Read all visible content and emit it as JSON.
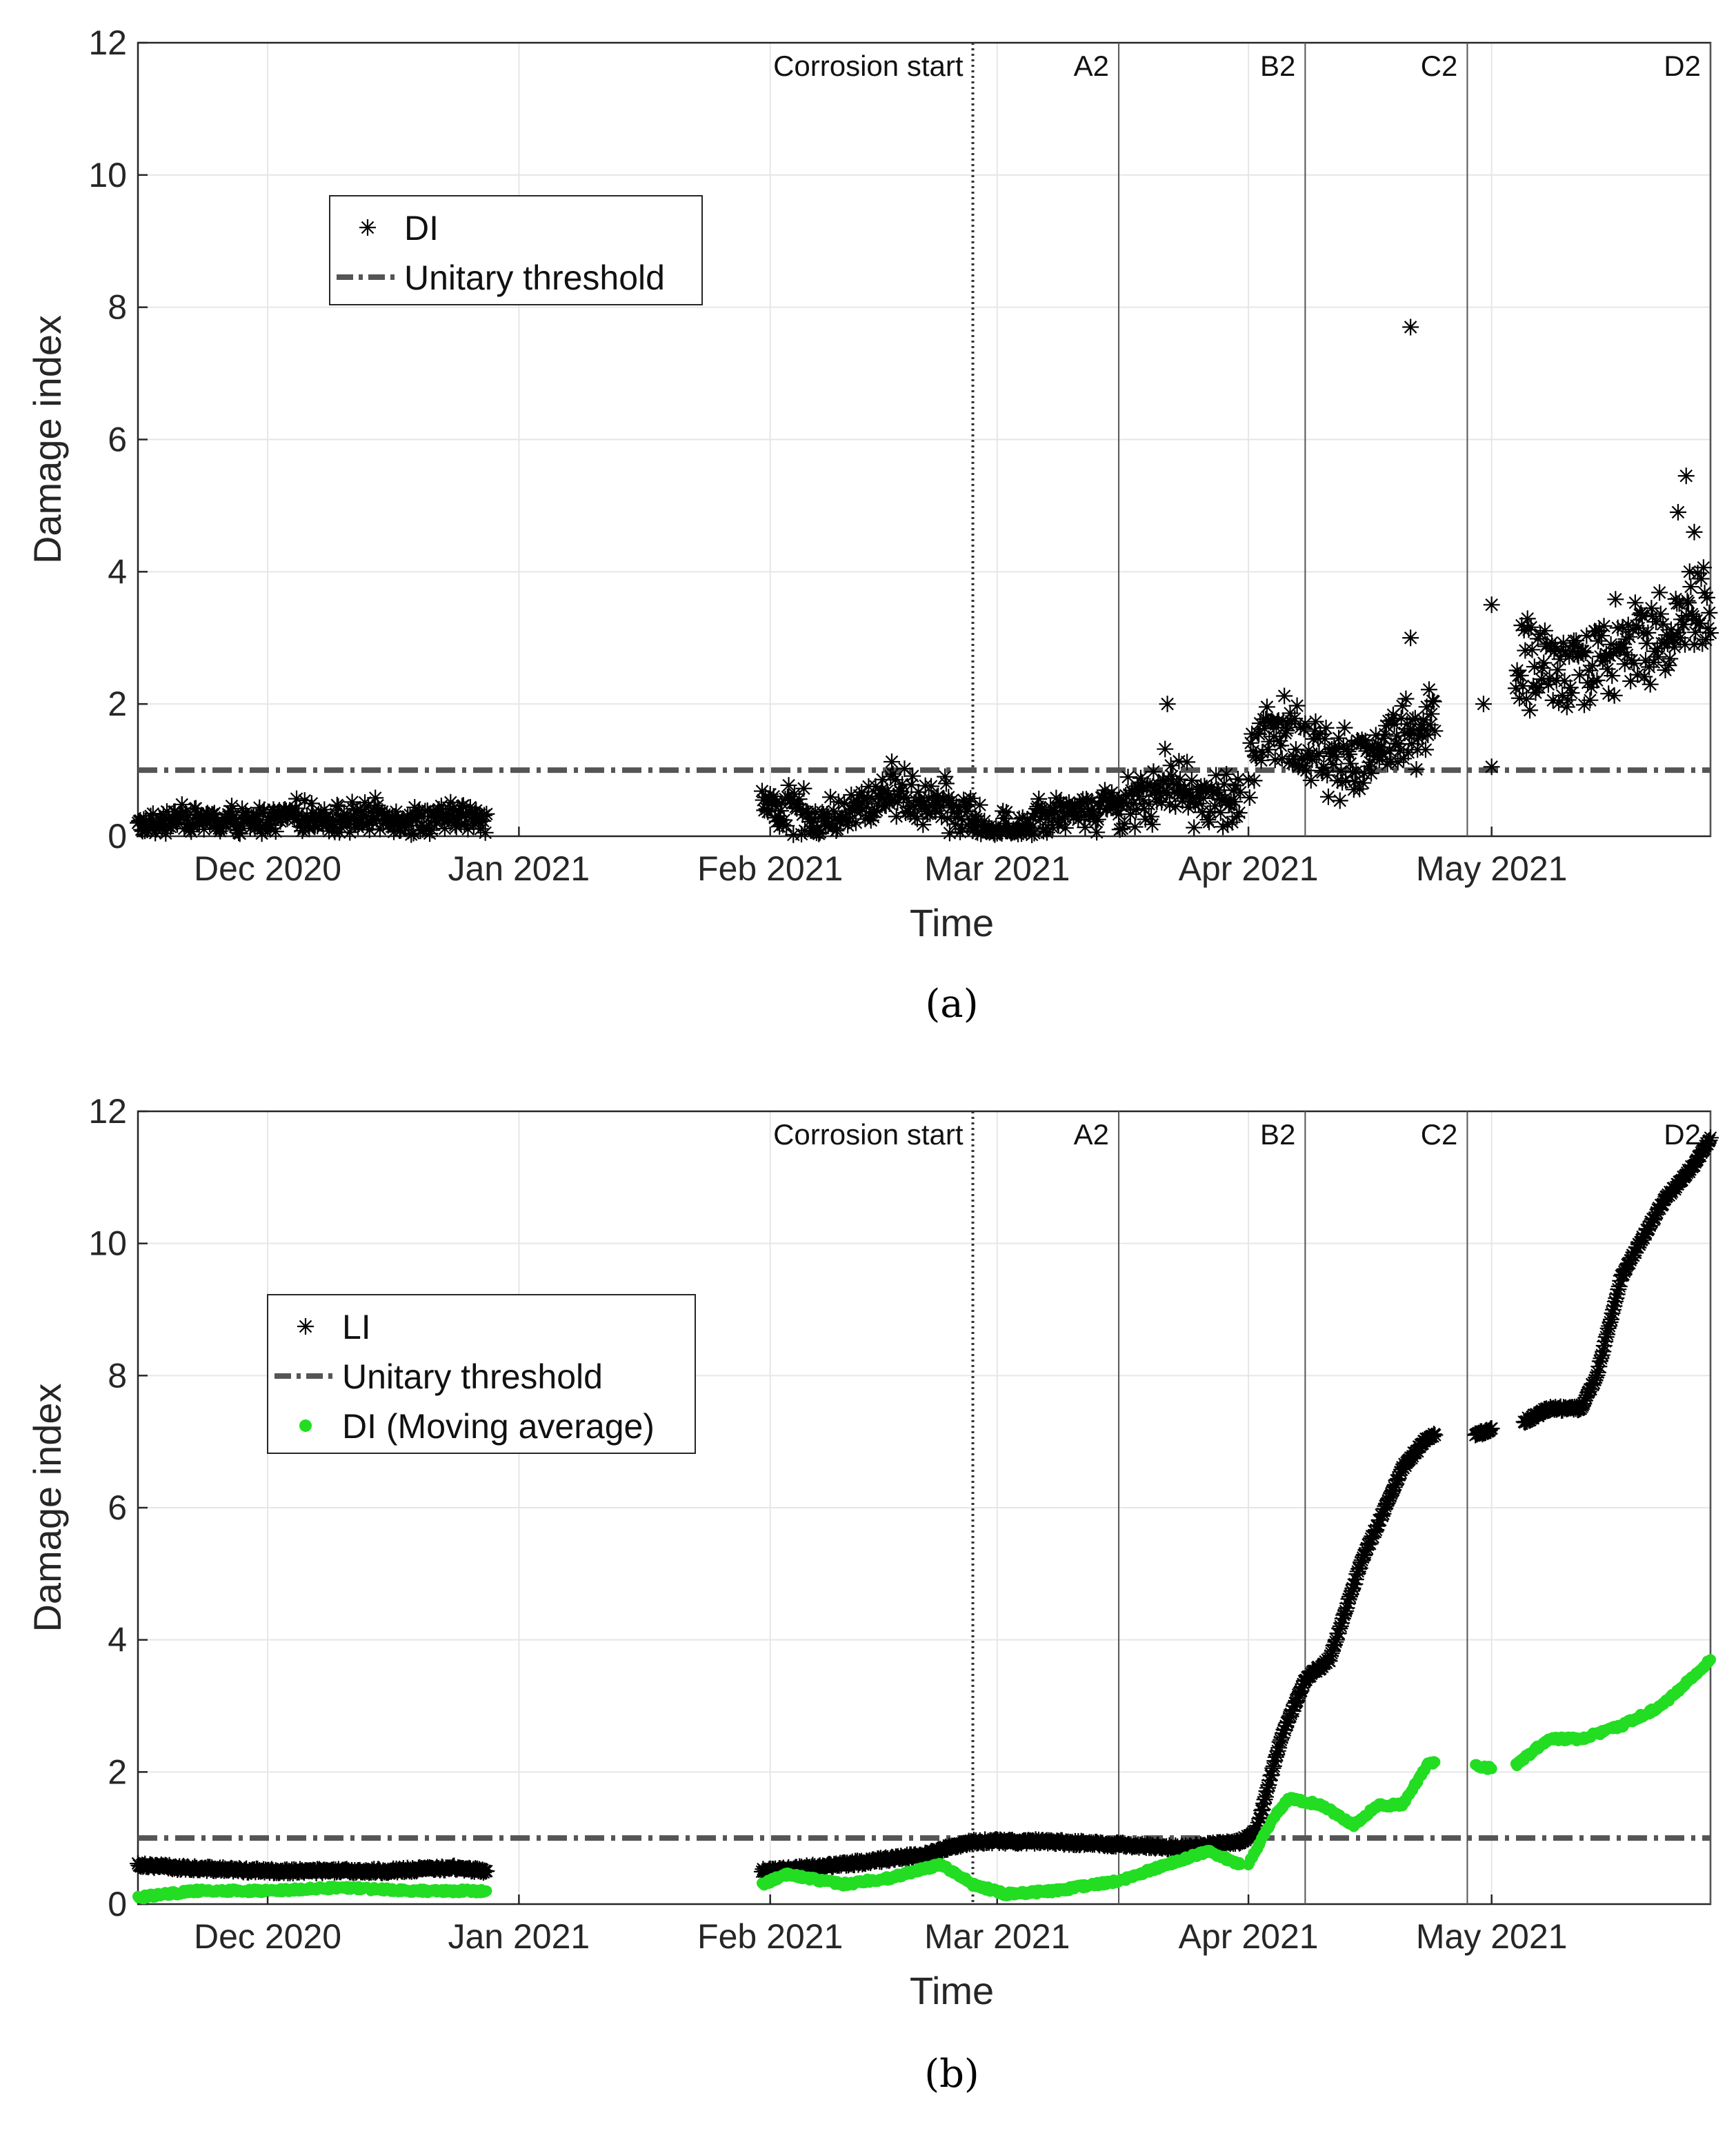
{
  "chart_data": [
    {
      "panel_label": "(a)",
      "type": "scatter",
      "xlabel": "Time",
      "ylabel": "Damage index",
      "ylim": [
        0,
        12
      ],
      "yticks": [
        0,
        2,
        4,
        6,
        8,
        10,
        12
      ],
      "xlim": [
        "2020-11-15",
        "2021-05-28"
      ],
      "xticks": [
        {
          "date": "2020-12-01",
          "label": "Dec 2020"
        },
        {
          "date": "2021-01-01",
          "label": "Jan 2021"
        },
        {
          "date": "2021-02-01",
          "label": "Feb 2021"
        },
        {
          "date": "2021-03-01",
          "label": "Mar 2021"
        },
        {
          "date": "2021-04-01",
          "label": "Apr 2021"
        },
        {
          "date": "2021-05-01",
          "label": "May 2021"
        }
      ],
      "grid": true,
      "legend_position": "upper-left",
      "events": [
        {
          "date": "2021-02-26",
          "label": "Corrosion start",
          "style": "dotted"
        },
        {
          "date": "2021-03-16",
          "label": "A2",
          "style": "solid"
        },
        {
          "date": "2021-04-08",
          "label": "B2",
          "style": "solid"
        },
        {
          "date": "2021-04-28",
          "label": "C2",
          "style": "solid"
        },
        {
          "date": "2021-05-28",
          "label": "D2",
          "style": "solid"
        }
      ],
      "series": [
        {
          "name": "DI",
          "marker": "asterisk",
          "color": "#000000",
          "segments": [
            {
              "start": "2020-11-15",
              "end": "2020-12-28",
              "levels": [
                0.15,
                0.2,
                0.3,
                0.25,
                0.2,
                0.25,
                0.3,
                0.3,
                0.25,
                0.3,
                0.3,
                0.25,
                0.25,
                0.3,
                0.3
              ],
              "spread": 0.2
            },
            {
              "start": "2021-01-31",
              "end": "2021-02-26",
              "levels": [
                0.5,
                0.4,
                0.3,
                0.2,
                0.3,
                0.5,
                0.7,
                0.6,
                0.5,
                0.4,
                0.3
              ],
              "spread": 0.35
            },
            {
              "start": "2021-02-26",
              "end": "2021-03-16",
              "levels": [
                0.1,
                0.15,
                0.2,
                0.3,
                0.4,
                0.4,
                0.45
              ],
              "spread": 0.3
            },
            {
              "start": "2021-03-16",
              "end": "2021-03-31",
              "levels": [
                0.5,
                0.6,
                0.8,
                0.7,
                0.6,
                0.5,
                0.4
              ],
              "spread": 0.45
            },
            {
              "start": "2021-04-01",
              "end": "2021-04-24",
              "levels": [
                1.2,
                1.5,
                1.6,
                1.4,
                1.2,
                1.1,
                1.2,
                1.3,
                1.4,
                1.5,
                1.6,
                1.7
              ],
              "spread": 0.5
            },
            {
              "start": "2021-05-04",
              "end": "2021-05-28",
              "levels": [
                2.5,
                2.7,
                2.5,
                2.6,
                2.8,
                2.9,
                3.0,
                3.1,
                3.3,
                3.6
              ],
              "spread": 0.65
            }
          ],
          "outliers": [
            {
              "x": "2021-03-22",
              "y": 2.0
            },
            {
              "x": "2021-04-21",
              "y": 7.7
            },
            {
              "x": "2021-04-21",
              "y": 3.0
            },
            {
              "x": "2021-04-30",
              "y": 2.0
            },
            {
              "x": "2021-05-01",
              "y": 3.5
            },
            {
              "x": "2021-05-01",
              "y": 1.05
            },
            {
              "x": "2021-05-25",
              "y": 5.45
            },
            {
              "x": "2021-05-24",
              "y": 4.9
            },
            {
              "x": "2021-05-26",
              "y": 4.6
            }
          ]
        },
        {
          "name": "Unitary threshold",
          "style": "dash-dot",
          "color": "#555555",
          "y": 1
        }
      ]
    },
    {
      "panel_label": "(b)",
      "type": "scatter",
      "xlabel": "Time",
      "ylabel": "Damage index",
      "ylim": [
        0,
        12
      ],
      "yticks": [
        0,
        2,
        4,
        6,
        8,
        10,
        12
      ],
      "xlim": [
        "2020-11-15",
        "2021-05-28"
      ],
      "xticks": [
        {
          "date": "2020-12-01",
          "label": "Dec 2020"
        },
        {
          "date": "2021-01-01",
          "label": "Jan 2021"
        },
        {
          "date": "2021-02-01",
          "label": "Feb 2021"
        },
        {
          "date": "2021-03-01",
          "label": "Mar 2021"
        },
        {
          "date": "2021-04-01",
          "label": "Apr 2021"
        },
        {
          "date": "2021-05-01",
          "label": "May 2021"
        }
      ],
      "grid": true,
      "legend_position": "upper-left",
      "events": [
        {
          "date": "2021-02-26",
          "label": "Corrosion start",
          "style": "dotted"
        },
        {
          "date": "2021-03-16",
          "label": "A2",
          "style": "solid"
        },
        {
          "date": "2021-04-08",
          "label": "B2",
          "style": "solid"
        },
        {
          "date": "2021-04-28",
          "label": "C2",
          "style": "solid"
        },
        {
          "date": "2021-05-28",
          "label": "D2",
          "style": "solid"
        }
      ],
      "series": [
        {
          "name": "LI",
          "marker": "asterisk",
          "color": "#000000",
          "segments": [
            {
              "points": [
                [
                  "2020-11-15",
                  0.6
                ],
                [
                  "2020-11-20",
                  0.55
                ],
                [
                  "2020-12-01",
                  0.5
                ],
                [
                  "2020-12-15",
                  0.5
                ],
                [
                  "2020-12-24",
                  0.55
                ],
                [
                  "2020-12-28",
                  0.5
                ]
              ]
            },
            {
              "points": [
                [
                  "2021-01-31",
                  0.5
                ],
                [
                  "2021-02-10",
                  0.6
                ],
                [
                  "2021-02-20",
                  0.75
                ],
                [
                  "2021-02-26",
                  0.95
                ],
                [
                  "2021-03-06",
                  0.95
                ],
                [
                  "2021-03-16",
                  0.9
                ],
                [
                  "2021-03-24",
                  0.85
                ],
                [
                  "2021-03-31",
                  0.95
                ],
                [
                  "2021-04-02",
                  1.1
                ],
                [
                  "2021-04-05",
                  2.5
                ],
                [
                  "2021-04-08",
                  3.4
                ],
                [
                  "2021-04-11",
                  3.7
                ],
                [
                  "2021-04-15",
                  5.2
                ],
                [
                  "2021-04-20",
                  6.6
                ],
                [
                  "2021-04-23",
                  7.05
                ],
                [
                  "2021-04-24",
                  7.1
                ]
              ]
            },
            {
              "points": [
                [
                  "2021-04-29",
                  7.1
                ],
                [
                  "2021-05-01",
                  7.2
                ]
              ]
            },
            {
              "points": [
                [
                  "2021-05-05",
                  7.3
                ],
                [
                  "2021-05-08",
                  7.5
                ],
                [
                  "2021-05-12",
                  7.5
                ],
                [
                  "2021-05-14",
                  8.0
                ],
                [
                  "2021-05-17",
                  9.5
                ],
                [
                  "2021-05-22",
                  10.6
                ],
                [
                  "2021-05-26",
                  11.2
                ],
                [
                  "2021-05-28",
                  11.6
                ]
              ]
            }
          ]
        },
        {
          "name": "Unitary threshold",
          "style": "dash-dot",
          "color": "#555555",
          "y": 1
        },
        {
          "name": "DI (Moving average)",
          "marker": "dot",
          "color": "#22dd22",
          "segments": [
            {
              "points": [
                [
                  "2020-11-15",
                  0.1
                ],
                [
                  "2020-11-22",
                  0.2
                ],
                [
                  "2020-12-01",
                  0.2
                ],
                [
                  "2020-12-10",
                  0.25
                ],
                [
                  "2020-12-20",
                  0.2
                ],
                [
                  "2020-12-28",
                  0.2
                ]
              ]
            },
            {
              "points": [
                [
                  "2021-01-31",
                  0.3
                ],
                [
                  "2021-02-03",
                  0.45
                ],
                [
                  "2021-02-10",
                  0.3
                ],
                [
                  "2021-02-16",
                  0.4
                ],
                [
                  "2021-02-22",
                  0.6
                ],
                [
                  "2021-02-26",
                  0.3
                ],
                [
                  "2021-03-02",
                  0.15
                ],
                [
                  "2021-03-08",
                  0.2
                ],
                [
                  "2021-03-16",
                  0.35
                ],
                [
                  "2021-03-22",
                  0.6
                ],
                [
                  "2021-03-27",
                  0.8
                ],
                [
                  "2021-03-31",
                  0.6
                ]
              ]
            },
            {
              "points": [
                [
                  "2021-04-01",
                  0.6
                ],
                [
                  "2021-04-04",
                  1.3
                ],
                [
                  "2021-04-06",
                  1.6
                ],
                [
                  "2021-04-10",
                  1.5
                ],
                [
                  "2021-04-14",
                  1.2
                ],
                [
                  "2021-04-17",
                  1.5
                ],
                [
                  "2021-04-20",
                  1.5
                ],
                [
                  "2021-04-23",
                  2.1
                ],
                [
                  "2021-04-24",
                  2.15
                ]
              ]
            },
            {
              "points": [
                [
                  "2021-04-29",
                  2.1
                ],
                [
                  "2021-05-01",
                  2.05
                ]
              ]
            },
            {
              "points": [
                [
                  "2021-05-04",
                  2.1
                ],
                [
                  "2021-05-08",
                  2.5
                ],
                [
                  "2021-05-12",
                  2.5
                ],
                [
                  "2021-05-17",
                  2.7
                ],
                [
                  "2021-05-22",
                  3.0
                ],
                [
                  "2021-05-28",
                  3.7
                ]
              ]
            }
          ]
        }
      ]
    }
  ]
}
